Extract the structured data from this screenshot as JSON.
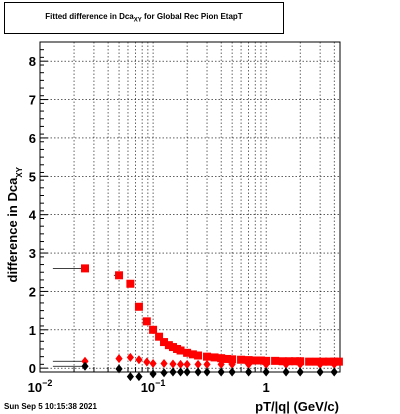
{
  "title": {
    "prefix": "Fitted difference in Dca",
    "subscript": "XY",
    "suffix": " for Global Rec Pion EtapT"
  },
  "timestamp": "Sun Sep  5 10:15:38 2021",
  "chart_data": {
    "type": "scatter",
    "x_scale": "log",
    "xlim": [
      0.01,
      4.5
    ],
    "ylim": [
      -0.1,
      8.5
    ],
    "grid": true,
    "xlabel": "pT/|q| (GeV/c)",
    "ylabel": "difference in Dca",
    "ylabel_subscript": "XY",
    "x_tick_labels": [
      {
        "value": 0.01,
        "base": "10",
        "exp": "−2"
      },
      {
        "value": 0.1,
        "base": "10",
        "exp": "−1"
      },
      {
        "value": 1,
        "base": "1",
        "exp": ""
      }
    ],
    "y_ticks": [
      0,
      1,
      2,
      3,
      4,
      5,
      6,
      7,
      8
    ],
    "series": [
      {
        "color": "#ff0000",
        "marker": "square",
        "x": [
          0.025,
          0.05,
          0.063,
          0.075,
          0.088,
          0.1,
          0.113,
          0.125,
          0.138,
          0.15,
          0.163,
          0.175,
          0.2,
          0.225,
          0.25,
          0.3,
          0.35,
          0.4,
          0.45,
          0.5,
          0.6,
          0.7,
          0.8,
          0.9,
          1.0,
          1.2,
          1.4,
          1.6,
          1.8,
          2.0,
          2.4,
          2.8,
          3.2,
          3.6,
          4.0,
          4.4
        ],
        "y": [
          2.6,
          2.42,
          2.2,
          1.6,
          1.22,
          1.0,
          0.82,
          0.68,
          0.6,
          0.55,
          0.5,
          0.46,
          0.4,
          0.36,
          0.33,
          0.3,
          0.28,
          0.26,
          0.24,
          0.23,
          0.22,
          0.21,
          0.2,
          0.2,
          0.19,
          0.19,
          0.18,
          0.18,
          0.18,
          0.18,
          0.17,
          0.17,
          0.17,
          0.17,
          0.17,
          0.17
        ],
        "step_to": [
          0.013,
          0.045
        ]
      },
      {
        "color": "#ff0000",
        "marker": "diamond",
        "x": [
          0.025,
          0.05,
          0.063,
          0.075,
          0.088,
          0.1,
          0.125,
          0.15,
          0.175,
          0.2,
          0.25,
          0.3,
          0.4,
          0.5,
          0.7,
          1.0,
          1.5,
          2.0,
          3.0,
          4.0
        ],
        "y": [
          0.18,
          0.25,
          0.28,
          0.22,
          0.16,
          0.12,
          0.12,
          0.11,
          0.1,
          0.1,
          0.1,
          0.1,
          0.1,
          0.1,
          0.1,
          0.1,
          0.1,
          0.1,
          0.1,
          0.1
        ],
        "step_to": [
          0.013
        ]
      },
      {
        "color": "#000000",
        "marker": "diamond",
        "x": [
          0.025,
          0.05,
          0.063,
          0.075,
          0.1,
          0.125,
          0.15,
          0.175,
          0.2,
          0.25,
          0.3,
          0.4,
          0.5,
          0.7,
          1.0,
          1.5,
          2.0,
          3.0,
          4.0
        ],
        "y": [
          0.05,
          -0.02,
          -0.22,
          -0.22,
          -0.15,
          -0.12,
          -0.1,
          -0.1,
          -0.1,
          -0.1,
          -0.1,
          -0.1,
          -0.1,
          -0.1,
          -0.1,
          -0.1,
          -0.1,
          -0.1,
          -0.1
        ],
        "step_to": [
          0.013
        ]
      }
    ]
  }
}
